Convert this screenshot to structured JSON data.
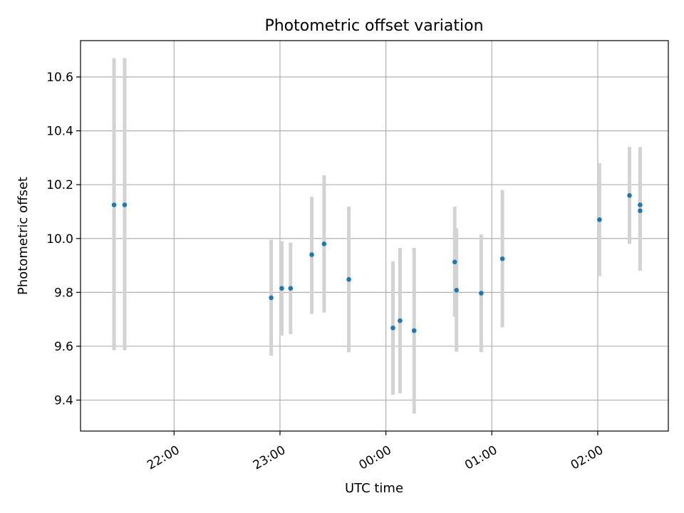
{
  "chart_data": {
    "type": "scatter",
    "title": "Photometric offset variation",
    "xlabel": "UTC time",
    "ylabel": "Photometric offset",
    "x_axis_type": "time",
    "xlim": [
      "21:07",
      "02:40"
    ],
    "ylim": [
      9.285,
      10.735
    ],
    "x_ticks": [
      "22:00",
      "23:00",
      "00:00",
      "01:00",
      "02:00"
    ],
    "y_ticks": [
      9.4,
      9.6,
      9.8,
      10.0,
      10.2,
      10.4,
      10.6
    ],
    "y_tick_labels": [
      "9.4",
      "9.6",
      "9.8",
      "10.0",
      "10.2",
      "10.4",
      "10.6"
    ],
    "grid": true,
    "marker_color": "#1f77b4",
    "errorbar_color": "#d3d3d3",
    "points": [
      {
        "x": "21:26",
        "y": 10.125,
        "ymin": 9.585,
        "ymax": 10.67
      },
      {
        "x": "21:32",
        "y": 10.125,
        "ymin": 9.585,
        "ymax": 10.67
      },
      {
        "x": "22:55",
        "y": 9.78,
        "ymin": 9.565,
        "ymax": 9.995
      },
      {
        "x": "23:01",
        "y": 9.815,
        "ymin": 9.64,
        "ymax": 9.99
      },
      {
        "x": "23:06",
        "y": 9.815,
        "ymin": 9.645,
        "ymax": 9.985
      },
      {
        "x": "23:18",
        "y": 9.94,
        "ymin": 9.72,
        "ymax": 10.155
      },
      {
        "x": "23:25",
        "y": 9.98,
        "ymin": 9.725,
        "ymax": 10.235
      },
      {
        "x": "23:39",
        "y": 9.848,
        "ymin": 9.578,
        "ymax": 10.118
      },
      {
        "x": "00:04",
        "y": 9.668,
        "ymin": 9.42,
        "ymax": 9.915
      },
      {
        "x": "00:08",
        "y": 9.695,
        "ymin": 9.425,
        "ymax": 9.965
      },
      {
        "x": "00:16",
        "y": 9.658,
        "ymin": 9.35,
        "ymax": 9.965
      },
      {
        "x": "00:39",
        "y": 9.913,
        "ymin": 9.71,
        "ymax": 10.118
      },
      {
        "x": "00:40",
        "y": 9.808,
        "ymin": 9.58,
        "ymax": 10.038
      },
      {
        "x": "00:54",
        "y": 9.797,
        "ymin": 9.578,
        "ymax": 10.015
      },
      {
        "x": "01:06",
        "y": 9.925,
        "ymin": 9.67,
        "ymax": 10.18
      },
      {
        "x": "02:01",
        "y": 10.07,
        "ymin": 9.86,
        "ymax": 10.28
      },
      {
        "x": "02:18",
        "y": 10.16,
        "ymin": 9.98,
        "ymax": 10.34
      },
      {
        "x": "02:24",
        "y": 10.125,
        "ymin": 9.905,
        "ymax": 10.34
      },
      {
        "x": "02:24",
        "y": 10.103,
        "ymin": 9.88,
        "ymax": 10.33
      }
    ]
  }
}
